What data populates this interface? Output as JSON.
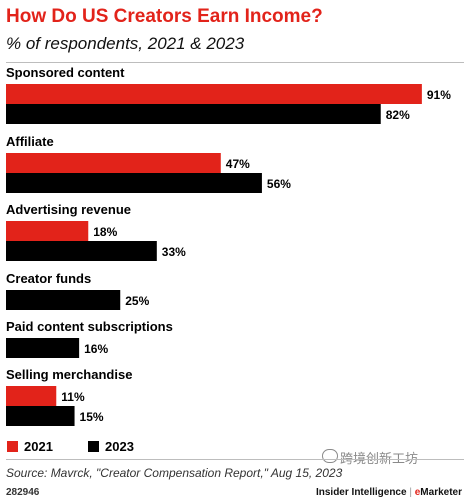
{
  "title": "How Do US Creators Earn Income?",
  "subtitle": "% of respondents, 2021 & 2023",
  "colors": {
    "2021": "#e2231a",
    "2023": "#000000",
    "title": "#e2231a"
  },
  "chart_data": {
    "type": "bar",
    "orientation": "horizontal",
    "categories": [
      "Sponsored content",
      "Affiliate",
      "Advertising revenue",
      "Creator funds",
      "Paid content subscriptions",
      "Selling merchandise"
    ],
    "series": [
      {
        "name": "2021",
        "values": [
          91,
          47,
          18,
          null,
          null,
          11
        ],
        "labels": [
          "91%",
          "47%",
          "18%",
          "",
          "",
          "11%"
        ]
      },
      {
        "name": "2023",
        "values": [
          82,
          56,
          33,
          25,
          16,
          15
        ],
        "labels": [
          "82%",
          "56%",
          "33%",
          "25%",
          "16%",
          "15%"
        ]
      }
    ],
    "xlim": [
      0,
      100
    ],
    "legend": "bottom-left"
  },
  "legend": {
    "items": [
      "2021",
      "2023"
    ]
  },
  "footer": {
    "source": "Source: Mavrck, \"Creator Compensation Report,\" Aug 15, 2023",
    "chart_id": "282946",
    "brand_left": "Insider Intelligence",
    "brand_sep": "|",
    "brand_e": "e",
    "brand_right": "Marketer",
    "watermark": "跨境创新工坊"
  }
}
